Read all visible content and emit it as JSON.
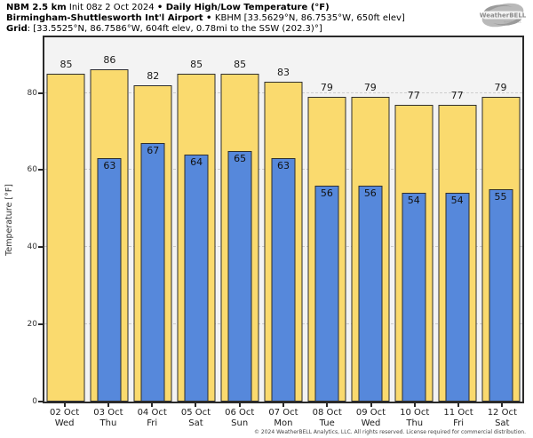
{
  "header": {
    "model": "NBM 2.5 km",
    "init": " Init 08z 2 Oct 2024 ",
    "sep1": "• ",
    "title": "Daily High/Low Temperature (°F)",
    "station_name": "Birmingham-Shuttlesworth Int'l Airport",
    "sep2": " • ",
    "station_meta": "KBHM [33.5629°N, 86.7535°W, 650ft elev]",
    "grid_label": "Grid",
    "grid_meta": ": [33.5525°N, 86.7586°W, 604ft elev, 0.78mi to the SSW (202.3)°]"
  },
  "logo": {
    "brand": "WeatherBELL",
    "sub": "Analytics LLC"
  },
  "chart_data": {
    "type": "bar",
    "title": "Daily High/Low Temperature (°F)",
    "categories": [
      {
        "date": "02 Oct",
        "day": "Wed"
      },
      {
        "date": "03 Oct",
        "day": "Thu"
      },
      {
        "date": "04 Oct",
        "day": "Fri"
      },
      {
        "date": "05 Oct",
        "day": "Sat"
      },
      {
        "date": "06 Oct",
        "day": "Sun"
      },
      {
        "date": "07 Oct",
        "day": "Mon"
      },
      {
        "date": "08 Oct",
        "day": "Tue"
      },
      {
        "date": "09 Oct",
        "day": "Wed"
      },
      {
        "date": "10 Oct",
        "day": "Thu"
      },
      {
        "date": "11 Oct",
        "day": "Fri"
      },
      {
        "date": "12 Oct",
        "day": "Sat"
      }
    ],
    "series": [
      {
        "name": "High",
        "color": "#fada6e",
        "values": [
          85,
          86,
          82,
          85,
          85,
          83,
          79,
          79,
          77,
          77,
          79
        ]
      },
      {
        "name": "Low",
        "color": "#5688db",
        "values": [
          null,
          63,
          67,
          64,
          65,
          63,
          56,
          56,
          54,
          54,
          55
        ]
      }
    ],
    "ylabel": "Temperature [°F]",
    "yticks": [
      0,
      20,
      40,
      60,
      80
    ],
    "ylim": [
      0,
      94.4
    ],
    "grid": "horizontal dashed at yticks",
    "legend": "none"
  },
  "footer": "© 2024 WeatherBELL Analytics, LLC. All rights reserved. License required for commercial distribution.",
  "colors": {
    "plot_bg": "#f3f3f3",
    "page_bg": "#ffffff",
    "grid_line": "#cdcdcd",
    "spine": "#2a2a2a",
    "high_fill": "#fada6e",
    "low_fill": "#5688db"
  }
}
